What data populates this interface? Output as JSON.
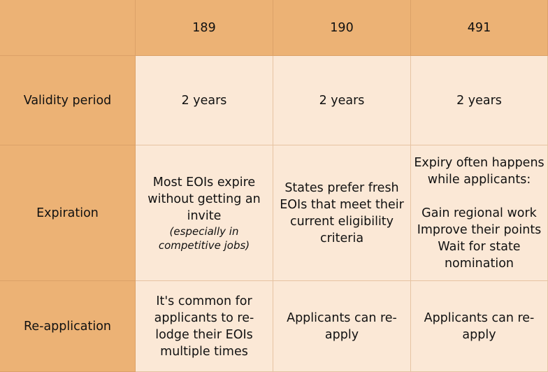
{
  "table": {
    "columns": [
      "189",
      "190",
      "491"
    ],
    "rows": [
      {
        "label": "Validity period",
        "cells": [
          {
            "text": "2 years"
          },
          {
            "text": "2 years"
          },
          {
            "text": "2 years"
          }
        ]
      },
      {
        "label": "Expiration",
        "cells": [
          {
            "text": "Most EOIs expire without getting an invite",
            "note": "(especially in competitive jobs)"
          },
          {
            "text": "States prefer fresh EOIs that meet their current eligibility criteria"
          },
          {
            "text": "Expiry often happens while applicants:",
            "items": [
              "Gain regional work",
              "Improve their points",
              "Wait for state nomination"
            ]
          }
        ]
      },
      {
        "label": "Re-application",
        "cells": [
          {
            "text": "It's common for applicants to re-lodge their EOIs multiple times"
          },
          {
            "text": "Applicants can re-apply"
          },
          {
            "text": "Applicants can re-apply"
          }
        ]
      }
    ]
  }
}
